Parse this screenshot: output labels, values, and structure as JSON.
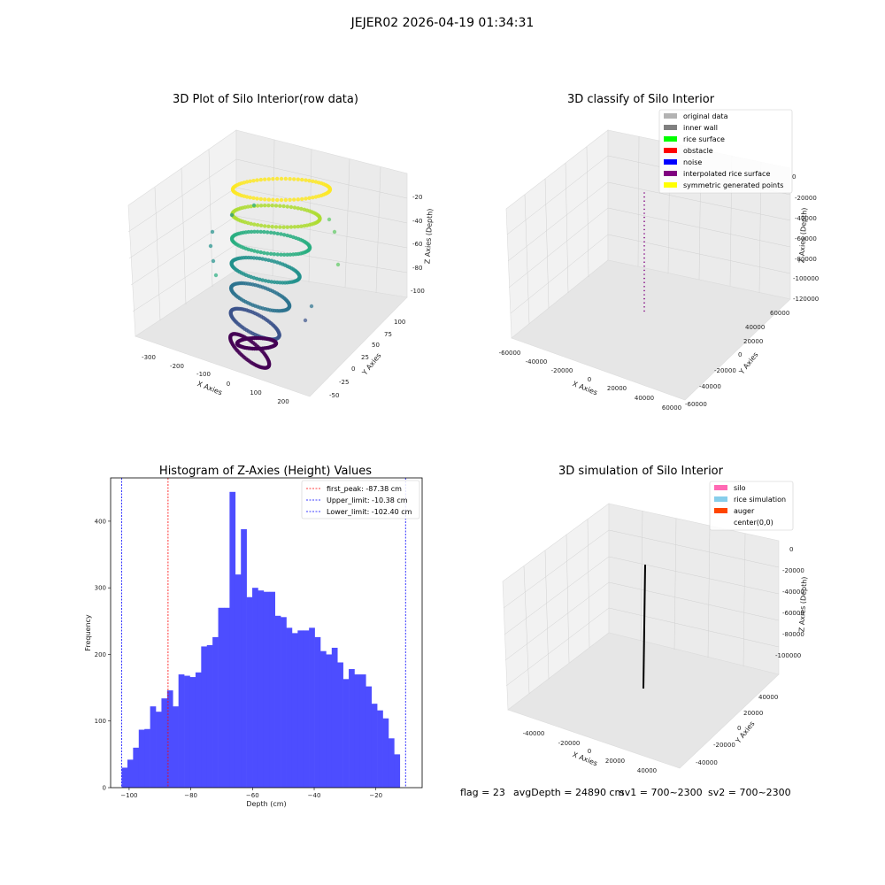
{
  "suptitle": "JEJER02 2026-04-19 01:34:31",
  "panels": {
    "raw": {
      "title": "3D Plot of Silo Interior(row data)",
      "xlabel": "X Axies",
      "ylabel": "Y Axies",
      "zlabel": "Z Axies (Depth)",
      "xticks": [
        "-300",
        "-200",
        "-100",
        "0",
        "100",
        "200"
      ],
      "yticks": [
        "-50",
        "-25",
        "0",
        "25",
        "50",
        "75",
        "100"
      ],
      "zticks": [
        "-20",
        "-40",
        "-60",
        "-80",
        "-100"
      ]
    },
    "classify": {
      "title": "3D classify of Silo Interior",
      "xlabel": "X Axies",
      "ylabel": "Y Axies",
      "zlabel": "Z Axies (Depth)",
      "xticks": [
        "-60000",
        "-40000",
        "-20000",
        "0",
        "20000",
        "40000",
        "60000"
      ],
      "yticks": [
        "-60000",
        "-40000",
        "-20000",
        "0",
        "20000",
        "40000",
        "60000"
      ],
      "zticks": [
        "0",
        "-20000",
        "-40000",
        "-60000",
        "-80000",
        "-100000",
        "-120000"
      ],
      "legend": [
        {
          "label": "original data",
          "color": "#b3b3b3"
        },
        {
          "label": "inner wall",
          "color": "#808080"
        },
        {
          "label": "rice surface",
          "color": "#00ff00"
        },
        {
          "label": "obstacle",
          "color": "#ff0000"
        },
        {
          "label": "noise",
          "color": "#0000ff"
        },
        {
          "label": "interpolated rice surface",
          "color": "#800080"
        },
        {
          "label": "symmetric generated points",
          "color": "#ffff00"
        }
      ]
    },
    "simulation": {
      "title": "3D simulation of Silo Interior",
      "xlabel": "X Axies",
      "ylabel": "Y Axies",
      "zlabel": "Z Axies (Depth)",
      "xticks": [
        "-40000",
        "-20000",
        "0",
        "20000",
        "40000"
      ],
      "yticks": [
        "-40000",
        "-20000",
        "0",
        "20000",
        "40000"
      ],
      "zticks": [
        "0",
        "-20000",
        "-40000",
        "-60000",
        "-80000",
        "-100000"
      ],
      "legend": [
        {
          "label": "silo",
          "color": "#ff69b4"
        },
        {
          "label": "rice simulation",
          "color": "#87ceeb"
        },
        {
          "label": "auger",
          "color": "#ff4500"
        },
        {
          "label": "center(0,0)",
          "color": "#ffffff"
        }
      ]
    }
  },
  "footer": {
    "flag": "flag = 23",
    "avg_depth": "avgDepth = 24890 cm",
    "sv1": "sv1 = 700~2300",
    "sv2": "sv2 = 700~2300"
  },
  "chart_data": [
    {
      "type": "scatter",
      "title": "3D Plot of Silo Interior(row data)",
      "xlabel": "X Axies",
      "ylabel": "Y Axies",
      "zlabel": "Z Axies (Depth)",
      "xlim": [
        -330,
        230
      ],
      "ylim": [
        -60,
        110
      ],
      "zlim": [
        -110,
        -10
      ],
      "colormap": "viridis"
    },
    {
      "type": "scatter",
      "title": "3D classify of Silo Interior",
      "xlim": [
        -60000,
        60000
      ],
      "ylim": [
        -60000,
        60000
      ],
      "zlim": [
        -120000,
        0
      ]
    },
    {
      "type": "bar",
      "title": "Histogram of Z-Axies (Height) Values",
      "xlabel": "Depth (cm)",
      "ylabel": "Frequency",
      "xlim": [
        -106,
        -5
      ],
      "ylim": [
        0,
        465
      ],
      "xticks": [
        -100,
        -80,
        -60,
        -40,
        -20
      ],
      "yticks": [
        0,
        100,
        200,
        300,
        400
      ],
      "bar_color": "#4d4dff",
      "bin_start": -102.4,
      "bin_width": 1.84,
      "values": [
        30,
        42,
        60,
        87,
        88,
        122,
        114,
        134,
        146,
        122,
        170,
        168,
        166,
        173,
        212,
        214,
        226,
        270,
        270,
        444,
        320,
        388,
        286,
        300,
        296,
        294,
        294,
        258,
        256,
        240,
        232,
        236,
        236,
        240,
        226,
        205,
        200,
        210,
        188,
        163,
        178,
        170,
        170,
        152,
        126,
        116,
        104,
        74,
        50
      ],
      "lines": [
        {
          "label": "first_peak: -87.38 cm",
          "x": -87.38,
          "color": "#ff0000"
        },
        {
          "label": "Upper_limit: -10.38 cm",
          "x": -10.38,
          "color": "#0000ff"
        },
        {
          "label": "Lower_limit: -102.40 cm",
          "x": -102.4,
          "color": "#0000ff"
        }
      ]
    },
    {
      "type": "line",
      "title": "3D simulation of Silo Interior",
      "xlim": [
        -50000,
        50000
      ],
      "ylim": [
        -50000,
        50000
      ],
      "zlim": [
        -110000,
        0
      ]
    }
  ]
}
